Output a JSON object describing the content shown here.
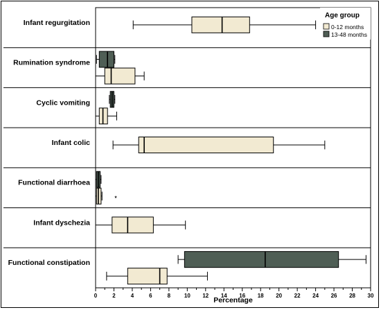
{
  "chart_data": {
    "type": "boxplot",
    "orientation": "horizontal",
    "xlabel": "Percentage",
    "xlim": [
      0,
      30
    ],
    "x_ticks": [
      "0",
      "2",
      "4",
      "6",
      "8",
      "10",
      "12",
      "14",
      "16",
      "18",
      "20",
      "22",
      "24",
      "26",
      "28",
      "30"
    ],
    "categories": [
      "Infant regurgitation",
      "Rumination syndrome",
      "Cyclic vomiting",
      "Infant colic",
      "Functional diarrhoea",
      "Infant dyschezia",
      "Functional constipation"
    ],
    "legend": {
      "title": "Age group",
      "position": "top-right",
      "entries": [
        {
          "name": "0-12 months",
          "color": "#f2ead2"
        },
        {
          "name": "13-48 months",
          "color": "#4f5e55"
        }
      ]
    },
    "series": [
      {
        "name": "0-12 months",
        "color": "#f2ead2",
        "boxes": [
          {
            "category": "Infant regurgitation",
            "min": 4.1,
            "q1": 10.5,
            "median": 13.8,
            "q3": 16.8,
            "max": 24.0,
            "outliers": []
          },
          {
            "category": "Rumination syndrome",
            "min": 0.0,
            "q1": 1.0,
            "median": 1.7,
            "q3": 4.3,
            "max": 5.3,
            "outliers": []
          },
          {
            "category": "Cyclic vomiting",
            "min": 0.0,
            "q1": 0.4,
            "median": 0.8,
            "q3": 1.3,
            "max": 2.3,
            "outliers": []
          },
          {
            "category": "Infant colic",
            "min": 1.9,
            "q1": 4.7,
            "median": 5.3,
            "q3": 19.4,
            "max": 25.0,
            "outliers": []
          },
          {
            "category": "Functional diarrhoea",
            "min": 0.0,
            "q1": 0.1,
            "median": 0.3,
            "q3": 0.6,
            "max": 0.7,
            "outliers": [
              2.2
            ]
          },
          {
            "category": "Infant dyschezia",
            "min": 0.0,
            "q1": 1.8,
            "median": 3.5,
            "q3": 6.3,
            "max": 9.8,
            "outliers": []
          },
          {
            "category": "Functional constipation",
            "min": 1.2,
            "q1": 3.5,
            "median": 7.0,
            "q3": 7.8,
            "max": 12.2,
            "outliers": []
          }
        ]
      },
      {
        "name": "13-48 months",
        "color": "#4f5e55",
        "boxes": [
          {
            "category": "Infant regurgitation",
            "min": null,
            "q1": null,
            "median": null,
            "q3": null,
            "max": null,
            "outliers": []
          },
          {
            "category": "Rumination syndrome",
            "min": 0.1,
            "q1": 0.4,
            "median": 1.3,
            "q3": 2.0,
            "max": 2.1,
            "outliers": []
          },
          {
            "category": "Cyclic vomiting",
            "min": 1.5,
            "q1": 1.6,
            "median": 1.8,
            "q3": 2.0,
            "max": 2.1,
            "outliers": []
          },
          {
            "category": "Infant colic",
            "min": null,
            "q1": null,
            "median": null,
            "q3": null,
            "max": null,
            "outliers": []
          },
          {
            "category": "Functional diarrhoea",
            "min": 0.0,
            "q1": 0.1,
            "median": 0.3,
            "q3": 0.5,
            "max": 0.6,
            "outliers": []
          },
          {
            "category": "Infant dyschezia",
            "min": null,
            "q1": null,
            "median": null,
            "q3": null,
            "max": null,
            "outliers": []
          },
          {
            "category": "Functional constipation",
            "min": 9.0,
            "q1": 9.7,
            "median": 18.5,
            "q3": 26.5,
            "max": 29.5,
            "outliers": []
          }
        ]
      }
    ]
  }
}
